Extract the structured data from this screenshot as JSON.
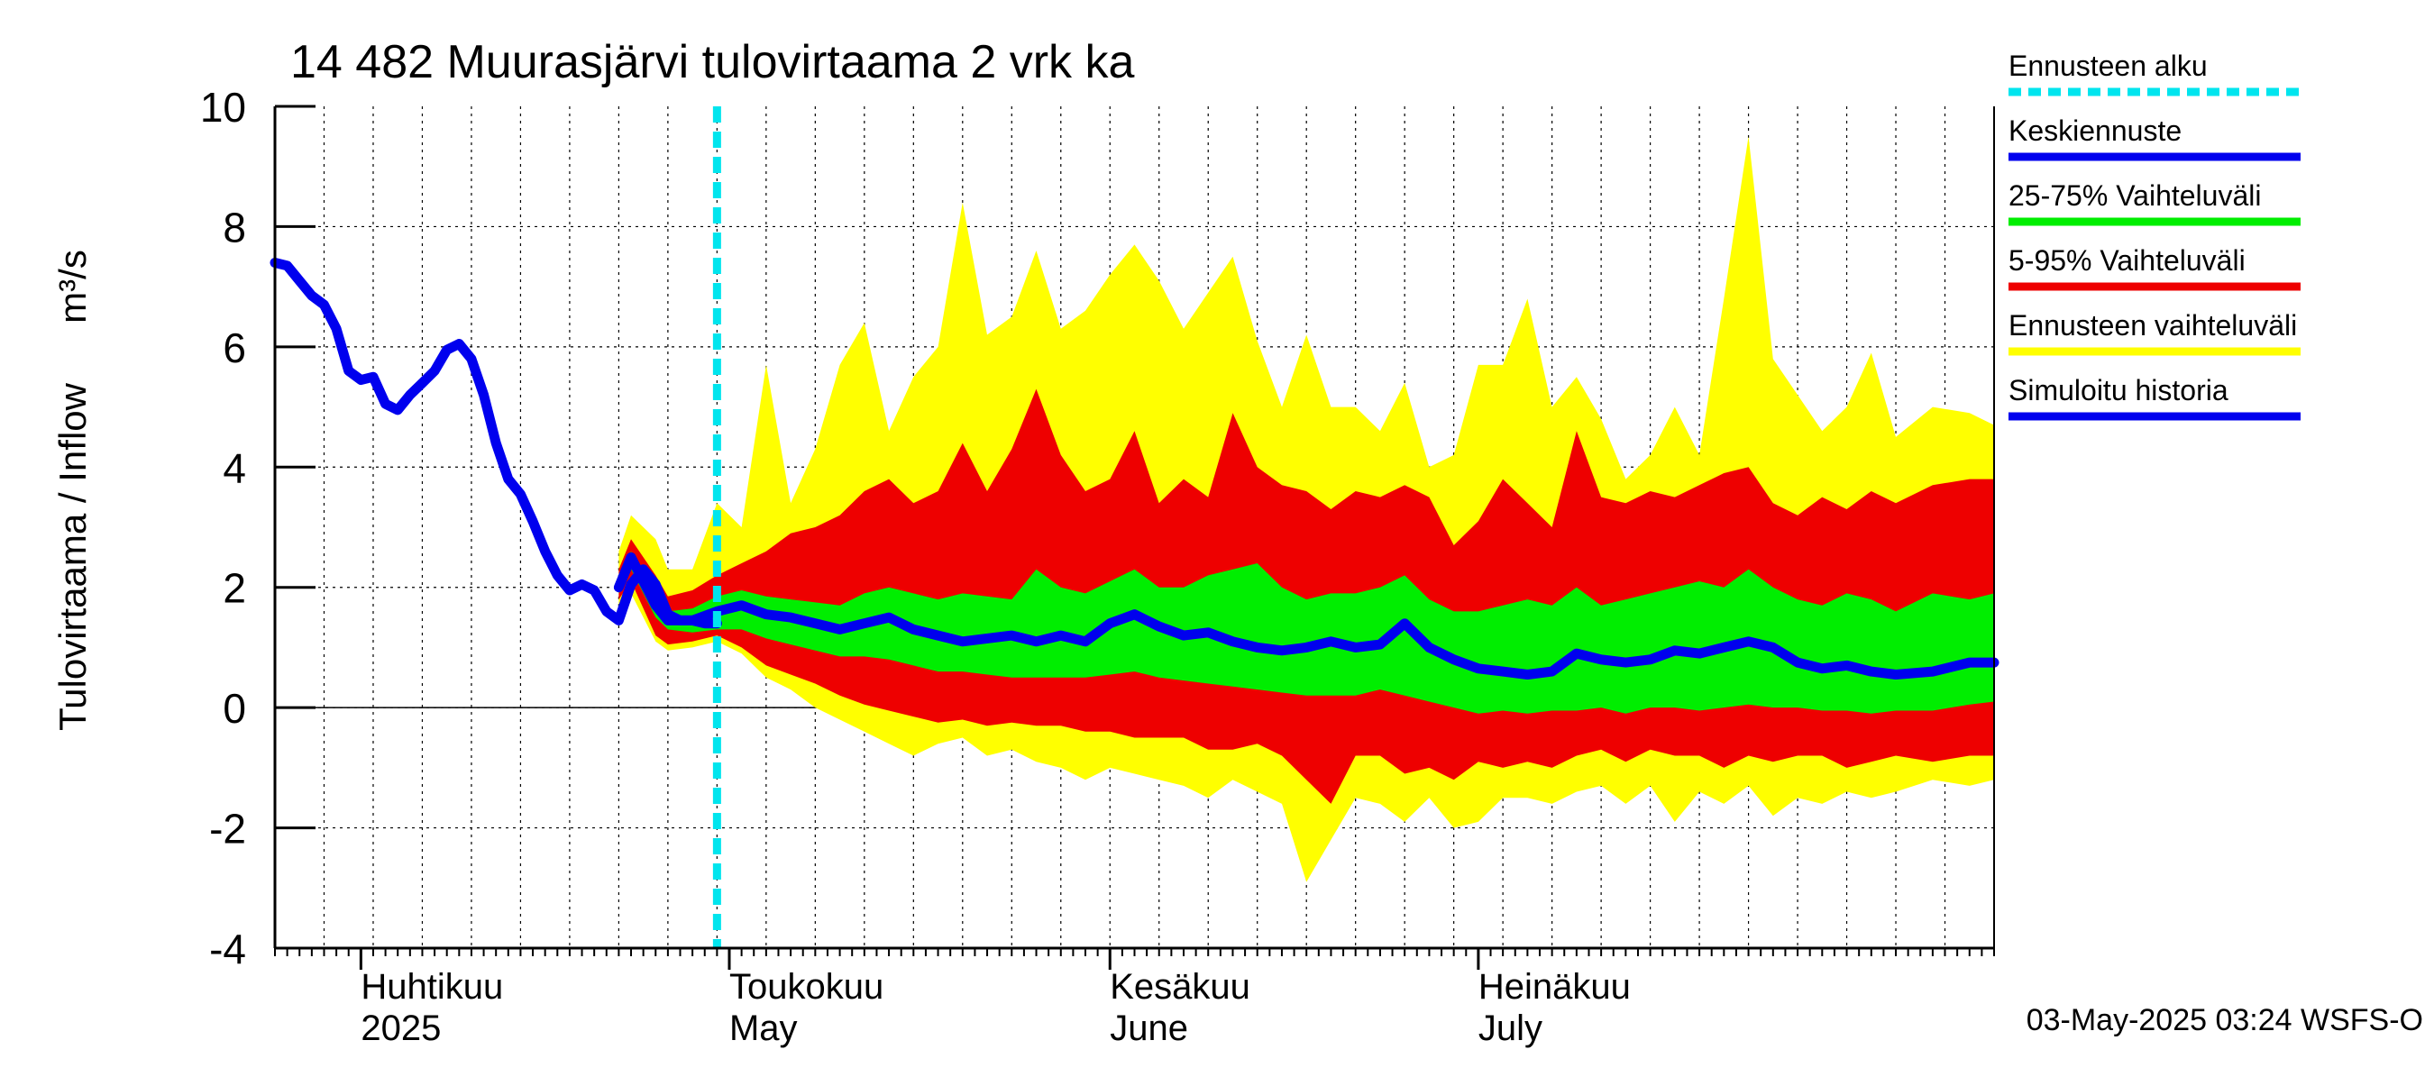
{
  "chart_data": {
    "type": "area",
    "title": "14 482 Muurasjärvi tulovirtaama 2 vrk ka",
    "ylabel": "Tulovirtaama / Inflow",
    "yunit": "m³/s",
    "xlabel": "",
    "ylim": [
      -4,
      10
    ],
    "yticks": [
      -4,
      -2,
      0,
      2,
      4,
      6,
      8,
      10
    ],
    "xlim": [
      "2025-03-25",
      "2025-08-12"
    ],
    "grid": true,
    "legend_position": "right",
    "month_labels": [
      {
        "date": "2025-04-01",
        "fi": "Huhtikuu",
        "en": "2025"
      },
      {
        "date": "2025-05-01",
        "fi": "Toukokuu",
        "en": "May"
      },
      {
        "date": "2025-06-01",
        "fi": "Kesäkuu",
        "en": "June"
      },
      {
        "date": "2025-07-01",
        "fi": "Heinäkuu",
        "en": "July"
      }
    ],
    "forecast_start": "2025-04-30",
    "footer": "03-May-2025 03:24 WSFS-O",
    "colors": {
      "forecast_start": "#00e5ee",
      "mean": "#0000ee",
      "p25_75": "#00ee00",
      "p5_95": "#ee0000",
      "range": "#ffff00",
      "history": "#0000ee"
    },
    "legend": [
      {
        "label": "Ennusteen alku",
        "key": "forecast_start",
        "style": "dashed"
      },
      {
        "label": "Keskiennuste",
        "key": "mean",
        "style": "solid"
      },
      {
        "label": "25-75% Vaihteluväli",
        "key": "p25_75",
        "style": "solid"
      },
      {
        "label": "5-95% Vaihteluväli",
        "key": "p5_95",
        "style": "solid"
      },
      {
        "label": "Ennusteen vaihteluväli",
        "key": "range",
        "style": "solid"
      },
      {
        "label": "Simuloitu historia",
        "key": "history",
        "style": "solid"
      }
    ],
    "history": [
      [
        "2025-03-25",
        7.4
      ],
      [
        "2025-03-26",
        7.35
      ],
      [
        "2025-03-27",
        7.1
      ],
      [
        "2025-03-28",
        6.85
      ],
      [
        "2025-03-29",
        6.7
      ],
      [
        "2025-03-30",
        6.3
      ],
      [
        "2025-03-31",
        5.6
      ],
      [
        "2025-04-01",
        5.45
      ],
      [
        "2025-04-02",
        5.5
      ],
      [
        "2025-04-03",
        5.05
      ],
      [
        "2025-04-04",
        4.95
      ],
      [
        "2025-04-05",
        5.2
      ],
      [
        "2025-04-06",
        5.4
      ],
      [
        "2025-04-07",
        5.6
      ],
      [
        "2025-04-08",
        5.95
      ],
      [
        "2025-04-09",
        6.05
      ],
      [
        "2025-04-10",
        5.8
      ],
      [
        "2025-04-11",
        5.2
      ],
      [
        "2025-04-12",
        4.4
      ],
      [
        "2025-04-13",
        3.8
      ],
      [
        "2025-04-14",
        3.55
      ],
      [
        "2025-04-15",
        3.1
      ],
      [
        "2025-04-16",
        2.6
      ],
      [
        "2025-04-17",
        2.2
      ],
      [
        "2025-04-18",
        1.95
      ],
      [
        "2025-04-19",
        2.05
      ],
      [
        "2025-04-20",
        1.95
      ],
      [
        "2025-04-21",
        1.6
      ],
      [
        "2025-04-22",
        1.45
      ],
      [
        "2025-04-23",
        2.05
      ],
      [
        "2025-04-24",
        2.3
      ],
      [
        "2025-04-25",
        2.05
      ],
      [
        "2025-04-26",
        1.55
      ],
      [
        "2025-04-27",
        1.45
      ],
      [
        "2025-04-28",
        1.45
      ],
      [
        "2025-04-29",
        1.4
      ],
      [
        "2025-04-30",
        1.4
      ]
    ],
    "forecast": [
      {
        "date": "2025-04-22",
        "mean": 2.0,
        "p25": 1.9,
        "p75": 2.1,
        "p5": 1.8,
        "p95": 2.3,
        "min": 1.6,
        "max": 2.6
      },
      {
        "date": "2025-04-23",
        "mean": 2.5,
        "p25": 2.3,
        "p75": 2.6,
        "p5": 2.1,
        "p95": 2.8,
        "min": 1.9,
        "max": 3.2
      },
      {
        "date": "2025-04-25",
        "mean": 1.7,
        "p25": 1.5,
        "p75": 1.9,
        "p5": 1.2,
        "p95": 2.2,
        "min": 1.1,
        "max": 2.8
      },
      {
        "date": "2025-04-26",
        "mean": 1.45,
        "p25": 1.3,
        "p75": 1.6,
        "p5": 1.05,
        "p95": 1.85,
        "min": 0.95,
        "max": 2.3
      },
      {
        "date": "2025-04-28",
        "mean": 1.45,
        "p25": 1.25,
        "p75": 1.65,
        "p5": 1.1,
        "p95": 1.95,
        "min": 1.0,
        "max": 2.3
      },
      {
        "date": "2025-04-30",
        "mean": 1.6,
        "p25": 1.3,
        "p75": 1.85,
        "p5": 1.2,
        "p95": 2.2,
        "min": 1.1,
        "max": 3.4
      },
      {
        "date": "2025-05-02",
        "mean": 1.7,
        "p25": 1.3,
        "p75": 1.95,
        "p5": 1.0,
        "p95": 2.4,
        "min": 0.9,
        "max": 3.0
      },
      {
        "date": "2025-05-04",
        "mean": 1.55,
        "p25": 1.15,
        "p75": 1.85,
        "p5": 0.7,
        "p95": 2.6,
        "min": 0.5,
        "max": 5.7
      },
      {
        "date": "2025-05-06",
        "mean": 1.5,
        "p25": 1.05,
        "p75": 1.8,
        "p5": 0.55,
        "p95": 2.9,
        "min": 0.3,
        "max": 3.4
      },
      {
        "date": "2025-05-08",
        "mean": 1.4,
        "p25": 0.95,
        "p75": 1.75,
        "p5": 0.4,
        "p95": 3.0,
        "min": 0.0,
        "max": 4.3
      },
      {
        "date": "2025-05-10",
        "mean": 1.3,
        "p25": 0.85,
        "p75": 1.7,
        "p5": 0.2,
        "p95": 3.2,
        "min": -0.2,
        "max": 5.7
      },
      {
        "date": "2025-05-12",
        "mean": 1.4,
        "p25": 0.85,
        "p75": 1.9,
        "p5": 0.05,
        "p95": 3.6,
        "min": -0.4,
        "max": 6.4
      },
      {
        "date": "2025-05-14",
        "mean": 1.5,
        "p25": 0.8,
        "p75": 2.0,
        "p5": -0.05,
        "p95": 3.8,
        "min": -0.6,
        "max": 4.6
      },
      {
        "date": "2025-05-16",
        "mean": 1.3,
        "p25": 0.7,
        "p75": 1.9,
        "p5": -0.15,
        "p95": 3.4,
        "min": -0.8,
        "max": 5.5
      },
      {
        "date": "2025-05-18",
        "mean": 1.2,
        "p25": 0.6,
        "p75": 1.8,
        "p5": -0.25,
        "p95": 3.6,
        "min": -0.6,
        "max": 6.0
      },
      {
        "date": "2025-05-20",
        "mean": 1.1,
        "p25": 0.6,
        "p75": 1.9,
        "p5": -0.2,
        "p95": 4.4,
        "min": -0.5,
        "max": 8.4
      },
      {
        "date": "2025-05-22",
        "mean": 1.15,
        "p25": 0.55,
        "p75": 1.85,
        "p5": -0.3,
        "p95": 3.6,
        "min": -0.8,
        "max": 6.2
      },
      {
        "date": "2025-05-24",
        "mean": 1.2,
        "p25": 0.5,
        "p75": 1.8,
        "p5": -0.25,
        "p95": 4.3,
        "min": -0.7,
        "max": 6.5
      },
      {
        "date": "2025-05-26",
        "mean": 1.1,
        "p25": 0.5,
        "p75": 2.3,
        "p5": -0.3,
        "p95": 5.3,
        "min": -0.9,
        "max": 7.6
      },
      {
        "date": "2025-05-28",
        "mean": 1.2,
        "p25": 0.5,
        "p75": 2.0,
        "p5": -0.3,
        "p95": 4.2,
        "min": -1.0,
        "max": 6.3
      },
      {
        "date": "2025-05-30",
        "mean": 1.1,
        "p25": 0.5,
        "p75": 1.9,
        "p5": -0.4,
        "p95": 3.6,
        "min": -1.2,
        "max": 6.6
      },
      {
        "date": "2025-06-01",
        "mean": 1.4,
        "p25": 0.55,
        "p75": 2.1,
        "p5": -0.4,
        "p95": 3.8,
        "min": -1.0,
        "max": 7.2
      },
      {
        "date": "2025-06-03",
        "mean": 1.55,
        "p25": 0.6,
        "p75": 2.3,
        "p5": -0.5,
        "p95": 4.6,
        "min": -1.1,
        "max": 7.7
      },
      {
        "date": "2025-06-05",
        "mean": 1.35,
        "p25": 0.5,
        "p75": 2.0,
        "p5": -0.5,
        "p95": 3.4,
        "min": -1.2,
        "max": 7.1
      },
      {
        "date": "2025-06-07",
        "mean": 1.2,
        "p25": 0.45,
        "p75": 2.0,
        "p5": -0.5,
        "p95": 3.8,
        "min": -1.3,
        "max": 6.3
      },
      {
        "date": "2025-06-09",
        "mean": 1.25,
        "p25": 0.4,
        "p75": 2.2,
        "p5": -0.7,
        "p95": 3.5,
        "min": -1.5,
        "max": 6.9
      },
      {
        "date": "2025-06-11",
        "mean": 1.1,
        "p25": 0.35,
        "p75": 2.3,
        "p5": -0.7,
        "p95": 4.9,
        "min": -1.2,
        "max": 7.5
      },
      {
        "date": "2025-06-13",
        "mean": 1.0,
        "p25": 0.3,
        "p75": 2.4,
        "p5": -0.6,
        "p95": 4.0,
        "min": -1.4,
        "max": 6.1
      },
      {
        "date": "2025-06-15",
        "mean": 0.95,
        "p25": 0.25,
        "p75": 2.0,
        "p5": -0.8,
        "p95": 3.7,
        "min": -1.6,
        "max": 5.0
      },
      {
        "date": "2025-06-17",
        "mean": 1.0,
        "p25": 0.2,
        "p75": 1.8,
        "p5": -1.2,
        "p95": 3.6,
        "min": -2.9,
        "max": 6.2
      },
      {
        "date": "2025-06-19",
        "mean": 1.1,
        "p25": 0.2,
        "p75": 1.9,
        "p5": -1.6,
        "p95": 3.3,
        "min": -2.2,
        "max": 5.0
      },
      {
        "date": "2025-06-21",
        "mean": 1.0,
        "p25": 0.2,
        "p75": 1.9,
        "p5": -0.8,
        "p95": 3.6,
        "min": -1.5,
        "max": 5.0
      },
      {
        "date": "2025-06-23",
        "mean": 1.05,
        "p25": 0.3,
        "p75": 2.0,
        "p5": -0.8,
        "p95": 3.5,
        "min": -1.6,
        "max": 4.6
      },
      {
        "date": "2025-06-25",
        "mean": 1.4,
        "p25": 0.2,
        "p75": 2.2,
        "p5": -1.1,
        "p95": 3.7,
        "min": -1.9,
        "max": 5.4
      },
      {
        "date": "2025-06-27",
        "mean": 1.0,
        "p25": 0.1,
        "p75": 1.8,
        "p5": -1.0,
        "p95": 3.5,
        "min": -1.5,
        "max": 4.0
      },
      {
        "date": "2025-06-29",
        "mean": 0.8,
        "p25": 0.0,
        "p75": 1.6,
        "p5": -1.2,
        "p95": 2.7,
        "min": -2.0,
        "max": 4.2
      },
      {
        "date": "2025-07-01",
        "mean": 0.65,
        "p25": -0.1,
        "p75": 1.6,
        "p5": -0.9,
        "p95": 3.1,
        "min": -1.9,
        "max": 5.7
      },
      {
        "date": "2025-07-03",
        "mean": 0.6,
        "p25": -0.05,
        "p75": 1.7,
        "p5": -1.0,
        "p95": 3.8,
        "min": -1.5,
        "max": 5.7
      },
      {
        "date": "2025-07-05",
        "mean": 0.55,
        "p25": -0.1,
        "p75": 1.8,
        "p5": -0.9,
        "p95": 3.4,
        "min": -1.5,
        "max": 6.8
      },
      {
        "date": "2025-07-07",
        "mean": 0.6,
        "p25": -0.05,
        "p75": 1.7,
        "p5": -1.0,
        "p95": 3.0,
        "min": -1.6,
        "max": 5.0
      },
      {
        "date": "2025-07-09",
        "mean": 0.9,
        "p25": -0.05,
        "p75": 2.0,
        "p5": -0.8,
        "p95": 4.6,
        "min": -1.4,
        "max": 5.5
      },
      {
        "date": "2025-07-11",
        "mean": 0.8,
        "p25": 0.0,
        "p75": 1.7,
        "p5": -0.7,
        "p95": 3.5,
        "min": -1.3,
        "max": 4.8
      },
      {
        "date": "2025-07-13",
        "mean": 0.75,
        "p25": -0.1,
        "p75": 1.8,
        "p5": -0.9,
        "p95": 3.4,
        "min": -1.6,
        "max": 3.8
      },
      {
        "date": "2025-07-15",
        "mean": 0.8,
        "p25": 0.0,
        "p75": 1.9,
        "p5": -0.7,
        "p95": 3.6,
        "min": -1.3,
        "max": 4.2
      },
      {
        "date": "2025-07-17",
        "mean": 0.95,
        "p25": 0.0,
        "p75": 2.0,
        "p5": -0.8,
        "p95": 3.5,
        "min": -1.9,
        "max": 5.0
      },
      {
        "date": "2025-07-19",
        "mean": 0.9,
        "p25": -0.05,
        "p75": 2.1,
        "p5": -0.8,
        "p95": 3.7,
        "min": -1.4,
        "max": 4.2
      },
      {
        "date": "2025-07-21",
        "mean": 1.0,
        "p25": 0.0,
        "p75": 2.0,
        "p5": -1.0,
        "p95": 3.9,
        "min": -1.6,
        "max": 6.8
      },
      {
        "date": "2025-07-23",
        "mean": 1.1,
        "p25": 0.05,
        "p75": 2.3,
        "p5": -0.8,
        "p95": 4.0,
        "min": -1.3,
        "max": 9.5
      },
      {
        "date": "2025-07-25",
        "mean": 1.0,
        "p25": 0.0,
        "p75": 2.0,
        "p5": -0.9,
        "p95": 3.4,
        "min": -1.8,
        "max": 5.8
      },
      {
        "date": "2025-07-27",
        "mean": 0.75,
        "p25": 0.0,
        "p75": 1.8,
        "p5": -0.8,
        "p95": 3.2,
        "min": -1.5,
        "max": 5.2
      },
      {
        "date": "2025-07-29",
        "mean": 0.65,
        "p25": -0.05,
        "p75": 1.7,
        "p5": -0.8,
        "p95": 3.5,
        "min": -1.6,
        "max": 4.6
      },
      {
        "date": "2025-07-31",
        "mean": 0.7,
        "p25": -0.05,
        "p75": 1.9,
        "p5": -1.0,
        "p95": 3.3,
        "min": -1.4,
        "max": 5.0
      },
      {
        "date": "2025-08-02",
        "mean": 0.6,
        "p25": -0.1,
        "p75": 1.8,
        "p5": -0.9,
        "p95": 3.6,
        "min": -1.5,
        "max": 5.9
      },
      {
        "date": "2025-08-04",
        "mean": 0.55,
        "p25": -0.05,
        "p75": 1.6,
        "p5": -0.8,
        "p95": 3.4,
        "min": -1.4,
        "max": 4.5
      },
      {
        "date": "2025-08-07",
        "mean": 0.6,
        "p25": -0.05,
        "p75": 1.9,
        "p5": -0.9,
        "p95": 3.7,
        "min": -1.2,
        "max": 5.0
      },
      {
        "date": "2025-08-10",
        "mean": 0.75,
        "p25": 0.05,
        "p75": 1.8,
        "p5": -0.8,
        "p95": 3.8,
        "min": -1.3,
        "max": 4.9
      },
      {
        "date": "2025-08-12",
        "mean": 0.75,
        "p25": 0.1,
        "p75": 1.9,
        "p5": -0.8,
        "p95": 3.8,
        "min": -1.2,
        "max": 4.7
      }
    ]
  }
}
